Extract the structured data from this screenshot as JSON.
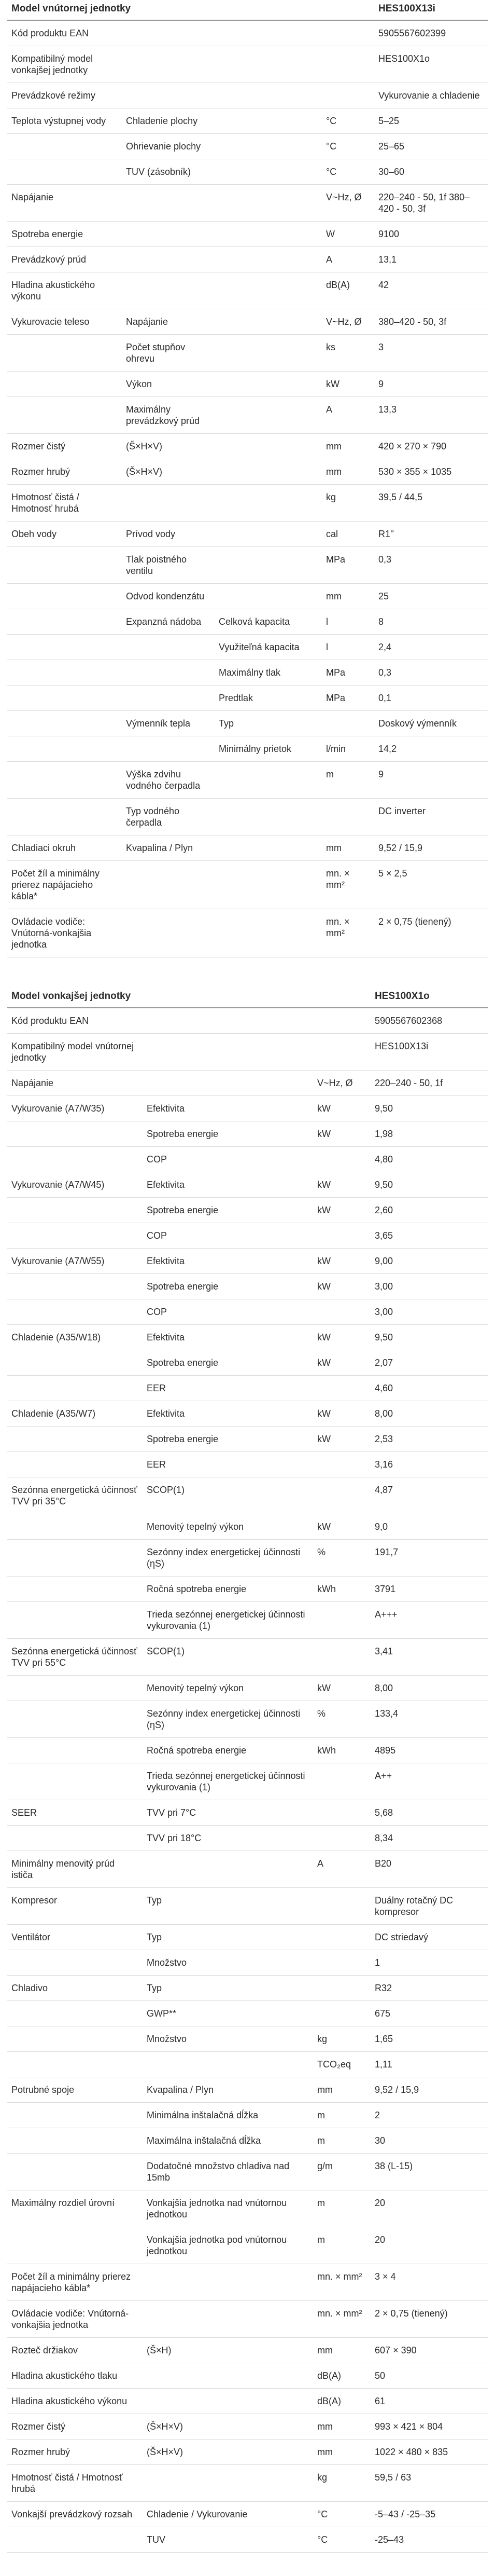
{
  "indoor": {
    "header": {
      "label": "Model vnútornej jednotky",
      "value": "HES100X13i"
    },
    "rows": [
      [
        "Kód produktu EAN",
        "",
        "",
        "",
        "5905567602399"
      ],
      [
        "Kompatibilný model vonkajšej jednotky",
        "",
        "",
        "",
        "HES100X1o"
      ],
      [
        "Prevádzkové režimy",
        "",
        "",
        "",
        "Vykurovanie a chladenie"
      ],
      [
        "Teplota výstupnej vody",
        "Chladenie plochy",
        "",
        "°C",
        "5–25"
      ],
      [
        "",
        "Ohrievanie plochy",
        "",
        "°C",
        "25–65"
      ],
      [
        "",
        "TUV (zásobník)",
        "",
        "°C",
        "30–60"
      ],
      [
        "Napájanie",
        "",
        "",
        "V~Hz, Ø",
        "220–240 - 50, 1f 380–420 - 50, 3f"
      ],
      [
        "Spotreba energie",
        "",
        "",
        "W",
        "9100"
      ],
      [
        "Prevádzkový prúd",
        "",
        "",
        "A",
        "13,1"
      ],
      [
        "Hladina akustického výkonu",
        "",
        "",
        "dB(A)",
        "42"
      ],
      [
        "Vykurovacie teleso",
        "Napájanie",
        "",
        "V~Hz, Ø",
        "380–420 - 50, 3f"
      ],
      [
        "",
        "Počet stupňov ohrevu",
        "",
        "ks",
        "3"
      ],
      [
        "",
        "Výkon",
        "",
        "kW",
        "9"
      ],
      [
        "",
        "Maximálny prevádzkový prúd",
        "",
        "A",
        "13,3"
      ],
      [
        "Rozmer čistý",
        "(Š×H×V)",
        "",
        "mm",
        "420 × 270 × 790"
      ],
      [
        "Rozmer hrubý",
        "(Š×H×V)",
        "",
        "mm",
        "530 × 355 × 1035"
      ],
      [
        "Hmotnosť čistá / Hmotnosť hrubá",
        "",
        "",
        "kg",
        "39,5 / 44,5"
      ],
      [
        "Obeh vody",
        "Prívod vody",
        "",
        "cal",
        "R1''"
      ],
      [
        "",
        "Tlak poistného ventilu",
        "",
        "MPa",
        "0,3"
      ],
      [
        "",
        "Odvod kondenzátu",
        "",
        "mm",
        "25"
      ],
      [
        "",
        "Expanzná nádoba",
        "Celková kapacita",
        "l",
        "8"
      ],
      [
        "",
        "",
        "Využiteľná kapacita",
        "l",
        "2,4"
      ],
      [
        "",
        "",
        "Maximálny tlak",
        "MPa",
        "0,3"
      ],
      [
        "",
        "",
        "Predtlak",
        "MPa",
        "0,1"
      ],
      [
        "",
        "Výmenník tepla",
        "Typ",
        "",
        "Doskový výmenník"
      ],
      [
        "",
        "",
        "Minimálny prietok",
        "l/min",
        "14,2"
      ],
      [
        "",
        "Výška zdvihu vodného čerpadla",
        "",
        "m",
        "9"
      ],
      [
        "",
        "Typ vodného čerpadla",
        "",
        "",
        "DC inverter"
      ],
      [
        "Chladiaci okruh",
        "Kvapalina / Plyn",
        "",
        "mm",
        "9,52 / 15,9"
      ],
      [
        "Počet žíl a minimálny prierez napájacieho kábla*",
        "",
        "",
        "mn. × mm²",
        "5 × 2,5"
      ],
      [
        "Ovládacie vodiče: Vnútorná-vonkajšia jednotka",
        "",
        "",
        "mn. × mm²",
        "2 × 0,75 (tienený)"
      ]
    ]
  },
  "outdoor": {
    "header": {
      "label": "Model vonkajšej jednotky",
      "value": "HES100X1o"
    },
    "rows": [
      [
        "Kód produktu EAN",
        "",
        "",
        "5905567602368"
      ],
      [
        "Kompatibilný model vnútornej jednotky",
        "",
        "",
        "HES100X13i"
      ],
      [
        "Napájanie",
        "",
        "V~Hz, Ø",
        "220–240 - 50, 1f"
      ],
      [
        "Vykurovanie (A7/W35)",
        "Efektivita",
        "kW",
        "9,50"
      ],
      [
        "",
        "Spotreba energie",
        "kW",
        "1,98"
      ],
      [
        "",
        "COP",
        "",
        "4,80"
      ],
      [
        "Vykurovanie (A7/W45)",
        "Efektivita",
        "kW",
        "9,50"
      ],
      [
        "",
        "Spotreba energie",
        "kW",
        "2,60"
      ],
      [
        "",
        "COP",
        "",
        "3,65"
      ],
      [
        "Vykurovanie (A7/W55)",
        "Efektivita",
        "kW",
        "9,00"
      ],
      [
        "",
        "Spotreba energie",
        "kW",
        "3,00"
      ],
      [
        "",
        "COP",
        "",
        "3,00"
      ],
      [
        "Chladenie (A35/W18)",
        "Efektivita",
        "kW",
        "9,50"
      ],
      [
        "",
        "Spotreba energie",
        "kW",
        "2,07"
      ],
      [
        "",
        "EER",
        "",
        "4,60"
      ],
      [
        "Chladenie (A35/W7)",
        "Efektivita",
        "kW",
        "8,00"
      ],
      [
        "",
        "Spotreba energie",
        "kW",
        "2,53"
      ],
      [
        "",
        "EER",
        "",
        "3,16"
      ],
      [
        "Sezónna energetická účinnosť TVV pri 35°C",
        "SCOP(1)",
        "",
        "4,87"
      ],
      [
        "",
        "Menovitý tepelný výkon",
        "kW",
        "9,0"
      ],
      [
        "",
        "Sezónny index energetickej účinnosti (ηS)",
        "%",
        "191,7"
      ],
      [
        "",
        "Ročná spotreba energie",
        "kWh",
        "3791"
      ],
      [
        "",
        "Trieda sezónnej energetickej účinnosti vykurovania (1)",
        "",
        "A+++"
      ],
      [
        "Sezónna energetická účinnosť TVV pri 55°C",
        "SCOP(1)",
        "",
        "3,41"
      ],
      [
        "",
        "Menovitý tepelný výkon",
        "kW",
        "8,00"
      ],
      [
        "",
        "Sezónny index energetickej účinnosti (ηS)",
        "%",
        "133,4"
      ],
      [
        "",
        "Ročná spotreba energie",
        "kWh",
        "4895"
      ],
      [
        "",
        "Trieda sezónnej energetickej účinnosti vykurovania (1)",
        "",
        "A++"
      ],
      [
        "SEER",
        "TVV pri 7°C",
        "",
        "5,68"
      ],
      [
        "",
        "TVV pri 18°C",
        "",
        "8,34"
      ],
      [
        "Minimálny menovitý prúd ističa",
        "",
        "A",
        "B20"
      ],
      [
        "Kompresor",
        "Typ",
        "",
        "Duálny rotačný DC kompresor"
      ],
      [
        "Ventilátor",
        "Typ",
        "",
        "DC striedavý"
      ],
      [
        "",
        "Množstvo",
        "",
        "1"
      ],
      [
        "Chladivo",
        "Typ",
        "",
        "R32"
      ],
      [
        "",
        "GWP**",
        "",
        "675"
      ],
      [
        "",
        "Množstvo",
        "kg",
        "1,65"
      ],
      [
        "",
        "",
        "TCO₂eq",
        "1,11"
      ],
      [
        "Potrubné spoje",
        "Kvapalina / Plyn",
        "mm",
        "9,52 / 15,9"
      ],
      [
        "",
        "Minimálna inštalačná dĺžka",
        "m",
        "2"
      ],
      [
        "",
        "Maximálna inštalačná dĺžka",
        "m",
        "30"
      ],
      [
        "",
        "Dodatočné množstvo chladiva nad 15mb",
        "g/m",
        "38 (L-15)"
      ],
      [
        "Maximálny rozdiel úrovní",
        "Vonkajšia jednotka nad vnútornou jednotkou",
        "m",
        "20"
      ],
      [
        "",
        "Vonkajšia jednotka pod vnútornou jednotkou",
        "m",
        "20"
      ],
      [
        "Počet žíl a minimálny prierez napájacieho kábla*",
        "",
        "mn. × mm²",
        "3 × 4"
      ],
      [
        "Ovládacie vodiče: Vnútorná-vonkajšia jednotka",
        "",
        "mn. × mm²",
        "2 × 0,75 (tienený)"
      ],
      [
        "Rozteč držiakov",
        "(Š×H)",
        "mm",
        "607 × 390"
      ],
      [
        "Hladina akustického tlaku",
        "",
        "dB(A)",
        "50"
      ],
      [
        "Hladina akustického výkonu",
        "",
        "dB(A)",
        "61"
      ],
      [
        "Rozmer čistý",
        "(Š×H×V)",
        "mm",
        "993 × 421 × 804"
      ],
      [
        "Rozmer hrubý",
        "(Š×H×V)",
        "mm",
        "1022 × 480 × 835"
      ],
      [
        "Hmotnosť čistá / Hmotnosť hrubá",
        "",
        "kg",
        "59,5 / 63"
      ],
      [
        "Vonkajší prevádzkový rozsah",
        "Chladenie / Vykurovanie",
        "°C",
        "-5–43 / -25–35"
      ],
      [
        "",
        "TUV",
        "°C",
        "-25–43"
      ]
    ]
  }
}
